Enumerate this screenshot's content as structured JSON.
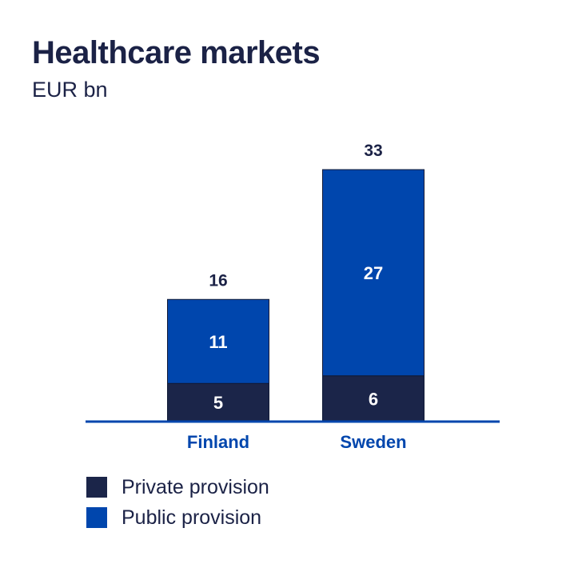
{
  "header": {
    "title": "Healthcare markets",
    "subtitle": "EUR bn"
  },
  "colors": {
    "private": "#1b2549",
    "public": "#0046ad",
    "axis": "#0046ad",
    "text_dark": "#1b2246",
    "category_label": "#0046ad"
  },
  "chart_data": {
    "type": "bar",
    "stacked": true,
    "title": "Healthcare markets",
    "subtitle": "EUR bn",
    "xlabel": "",
    "ylabel": "",
    "categories": [
      "Finland",
      "Sweden"
    ],
    "series": [
      {
        "name": "Private provision",
        "values": [
          5,
          6
        ]
      },
      {
        "name": "Public provision",
        "values": [
          11,
          27
        ]
      }
    ],
    "totals": [
      16,
      33
    ],
    "ylim": [
      0,
      33
    ],
    "grid": false,
    "legend_position": "bottom-left"
  },
  "legend": {
    "items": [
      {
        "label": "Private provision",
        "color": "#1b2549"
      },
      {
        "label": "Public provision",
        "color": "#0046ad"
      }
    ]
  }
}
